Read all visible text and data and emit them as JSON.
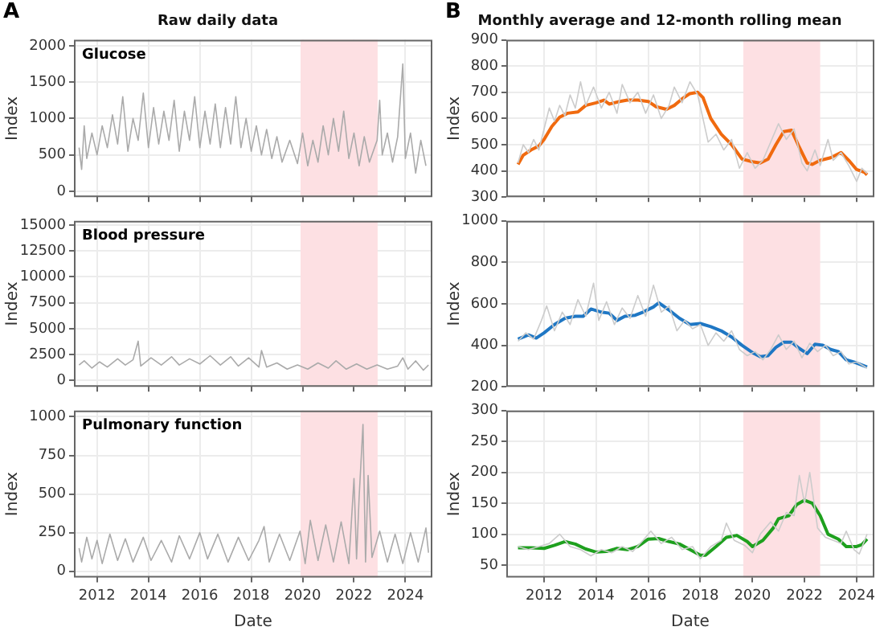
{
  "chart_data": [
    {
      "type": "line",
      "title": "Raw daily data",
      "ylabel": "Index",
      "annotations": [
        "A",
        "Glucose"
      ],
      "xlim": [
        2011.1,
        2025.05
      ],
      "xticks": [
        2012,
        2014,
        2016,
        2018,
        2020,
        2022,
        2024
      ],
      "ylim": [
        -80,
        2080
      ],
      "yticks": [
        0,
        500,
        1000,
        1500,
        2000
      ],
      "grid": true,
      "tick_labels": "y",
      "marker": "none",
      "bands": [
        {
          "axis": "x",
          "from": 2019.92,
          "to": 2022.92,
          "color": "#fde0e3"
        }
      ],
      "series": [
        {
          "color": "#aaaaaa",
          "x": [
            2011.3,
            2011.4,
            2011.5,
            2011.6,
            2011.8,
            2012.0,
            2012.2,
            2012.4,
            2012.6,
            2012.8,
            2013.0,
            2013.2,
            2013.4,
            2013.6,
            2013.8,
            2014.0,
            2014.2,
            2014.4,
            2014.6,
            2014.8,
            2015.0,
            2015.2,
            2015.4,
            2015.6,
            2015.8,
            2016.0,
            2016.2,
            2016.4,
            2016.6,
            2016.8,
            2017.0,
            2017.2,
            2017.4,
            2017.6,
            2017.8,
            2018.0,
            2018.2,
            2018.4,
            2018.6,
            2018.8,
            2019.0,
            2019.2,
            2019.5,
            2019.8,
            2020.0,
            2020.2,
            2020.4,
            2020.6,
            2020.8,
            2021.0,
            2021.2,
            2021.4,
            2021.6,
            2021.8,
            2022.0,
            2022.2,
            2022.4,
            2022.6,
            2022.9,
            2023.0,
            2023.1,
            2023.3,
            2023.5,
            2023.7,
            2023.9,
            2024.0,
            2024.2,
            2024.4,
            2024.6,
            2024.8
          ],
          "values": [
            600,
            300,
            900,
            450,
            800,
            500,
            900,
            600,
            1050,
            650,
            1300,
            550,
            1000,
            700,
            1350,
            600,
            1150,
            650,
            1100,
            700,
            1250,
            550,
            1100,
            700,
            1300,
            600,
            1100,
            650,
            1200,
            600,
            1150,
            650,
            1300,
            600,
            1000,
            550,
            900,
            500,
            850,
            450,
            750,
            400,
            700,
            380,
            800,
            350,
            700,
            400,
            900,
            500,
            1000,
            550,
            1100,
            450,
            800,
            350,
            750,
            400,
            700,
            1250,
            500,
            800,
            400,
            750,
            1750,
            450,
            800,
            250,
            700,
            350
          ]
        }
      ]
    },
    {
      "type": "line",
      "title": "Monthly average and 12-month rolling mean",
      "ylabel": "Index",
      "annotations": [
        "B"
      ],
      "xlim": [
        2010.55,
        2024.68
      ],
      "xticks": [
        2012,
        2014,
        2016,
        2018,
        2020,
        2022,
        2024
      ],
      "ylim": [
        300,
        900
      ],
      "yticks": [
        300,
        400,
        500,
        600,
        700,
        800,
        900
      ],
      "grid": true,
      "tick_labels": "y",
      "marker": "none",
      "bands": [
        {
          "axis": "x",
          "from": 2019.65,
          "to": 2022.6,
          "color": "#fde0e3"
        }
      ],
      "series": [
        {
          "color": "#cccccc",
          "x": [
            2011.0,
            2011.2,
            2011.4,
            2011.6,
            2011.8,
            2012.0,
            2012.2,
            2012.4,
            2012.6,
            2012.8,
            2013.0,
            2013.2,
            2013.4,
            2013.6,
            2013.9,
            2014.2,
            2014.5,
            2014.8,
            2015.0,
            2015.3,
            2015.6,
            2015.9,
            2016.2,
            2016.5,
            2016.8,
            2017.0,
            2017.3,
            2017.6,
            2017.9,
            2018.1,
            2018.3,
            2018.6,
            2018.9,
            2019.2,
            2019.5,
            2019.8,
            2020.1,
            2020.4,
            2020.7,
            2021.0,
            2021.3,
            2021.6,
            2021.9,
            2022.1,
            2022.4,
            2022.6,
            2022.9,
            2023.1,
            2023.4,
            2023.7,
            2024.0,
            2024.2,
            2024.4
          ],
          "values": [
            430,
            500,
            470,
            520,
            480,
            560,
            640,
            590,
            650,
            610,
            690,
            640,
            740,
            650,
            720,
            640,
            700,
            620,
            730,
            660,
            700,
            620,
            690,
            600,
            650,
            720,
            660,
            740,
            690,
            600,
            510,
            540,
            480,
            520,
            410,
            470,
            410,
            440,
            510,
            580,
            520,
            560,
            430,
            400,
            480,
            420,
            520,
            440,
            470,
            420,
            360,
            410,
            390
          ]
        },
        {
          "color": "#f06a0f",
          "x": [
            2011.0,
            2011.2,
            2011.5,
            2011.8,
            2012.0,
            2012.3,
            2012.6,
            2012.9,
            2013.3,
            2013.6,
            2014.0,
            2014.3,
            2014.5,
            2014.9,
            2015.2,
            2015.6,
            2016.0,
            2016.3,
            2016.7,
            2017.0,
            2017.3,
            2017.6,
            2017.9,
            2018.1,
            2018.4,
            2018.8,
            2019.2,
            2019.6,
            2020.0,
            2020.3,
            2020.6,
            2020.9,
            2021.2,
            2021.5,
            2021.8,
            2022.1,
            2022.3,
            2022.6,
            2023.0,
            2023.4,
            2023.7,
            2024.0,
            2024.3,
            2024.4
          ],
          "values": [
            425,
            460,
            480,
            495,
            520,
            570,
            605,
            620,
            625,
            650,
            660,
            670,
            655,
            665,
            670,
            670,
            665,
            645,
            635,
            650,
            675,
            695,
            700,
            680,
            600,
            540,
            500,
            445,
            435,
            430,
            445,
            500,
            550,
            555,
            490,
            430,
            425,
            440,
            450,
            470,
            440,
            405,
            395,
            385
          ]
        }
      ]
    },
    {
      "type": "line",
      "ylabel": "Index",
      "annotations": [
        "Blood pressure"
      ],
      "xlim": [
        2011.1,
        2025.05
      ],
      "xticks": [
        2012,
        2014,
        2016,
        2018,
        2020,
        2022,
        2024
      ],
      "ylim": [
        -600,
        15400
      ],
      "yticks": [
        0,
        2500,
        5000,
        7500,
        10000,
        12500,
        15000
      ],
      "grid": true,
      "tick_labels": "y",
      "marker": "none",
      "bands": [
        {
          "axis": "x",
          "from": 2019.92,
          "to": 2022.92,
          "color": "#fde0e3"
        }
      ],
      "series": [
        {
          "color": "#aaaaaa",
          "x": [
            2011.3,
            2011.5,
            2011.8,
            2012.1,
            2012.4,
            2012.8,
            2013.1,
            2013.4,
            2013.6,
            2013.7,
            2014.1,
            2014.5,
            2014.9,
            2015.2,
            2015.6,
            2016.0,
            2016.4,
            2016.8,
            2017.2,
            2017.5,
            2017.9,
            2018.3,
            2018.4,
            2018.6,
            2019.0,
            2019.4,
            2019.8,
            2020.2,
            2020.6,
            2021.0,
            2021.3,
            2021.7,
            2022.1,
            2022.5,
            2022.9,
            2023.3,
            2023.7,
            2023.9,
            2024.1,
            2024.4,
            2024.7,
            2024.9
          ],
          "values": [
            1500,
            1900,
            1200,
            1800,
            1300,
            2100,
            1500,
            2000,
            3800,
            1400,
            2200,
            1500,
            2300,
            1500,
            2100,
            1600,
            2400,
            1500,
            2300,
            1400,
            2200,
            1300,
            2900,
            1300,
            1700,
            1100,
            1500,
            1100,
            1700,
            1200,
            1900,
            1100,
            1600,
            1100,
            1500,
            1100,
            1400,
            2200,
            1100,
            1900,
            1000,
            1500
          ]
        }
      ]
    },
    {
      "type": "line",
      "ylabel": "Index",
      "xlim": [
        2010.55,
        2024.68
      ],
      "xticks": [
        2012,
        2014,
        2016,
        2018,
        2020,
        2022,
        2024
      ],
      "ylim": [
        200,
        1000
      ],
      "yticks": [
        200,
        400,
        600,
        800,
        1000
      ],
      "grid": true,
      "tick_labels": "y",
      "marker": "none",
      "bands": [
        {
          "axis": "x",
          "from": 2019.65,
          "to": 2022.6,
          "color": "#fde0e3"
        }
      ],
      "series": [
        {
          "color": "#cccccc",
          "x": [
            2011.0,
            2011.3,
            2011.6,
            2011.9,
            2012.1,
            2012.4,
            2012.7,
            2013.0,
            2013.3,
            2013.6,
            2013.9,
            2014.1,
            2014.4,
            2014.7,
            2015.0,
            2015.3,
            2015.6,
            2015.9,
            2016.2,
            2016.5,
            2016.8,
            2017.1,
            2017.4,
            2017.7,
            2018.0,
            2018.3,
            2018.6,
            2018.9,
            2019.2,
            2019.5,
            2019.8,
            2020.1,
            2020.4,
            2020.7,
            2021.0,
            2021.3,
            2021.6,
            2021.9,
            2022.2,
            2022.5,
            2022.8,
            2023.1,
            2023.4,
            2023.7,
            2024.0,
            2024.4
          ],
          "values": [
            420,
            460,
            430,
            520,
            590,
            470,
            560,
            500,
            620,
            540,
            700,
            520,
            610,
            500,
            580,
            530,
            640,
            540,
            690,
            560,
            590,
            470,
            520,
            480,
            500,
            400,
            460,
            420,
            470,
            380,
            350,
            370,
            330,
            380,
            450,
            380,
            420,
            340,
            410,
            370,
            400,
            350,
            370,
            310,
            320,
            290
          ]
        },
        {
          "color": "#1f77c4",
          "x": [
            2011.0,
            2011.4,
            2011.7,
            2012.0,
            2012.4,
            2012.8,
            2013.2,
            2013.5,
            2013.8,
            2014.2,
            2014.5,
            2014.8,
            2015.1,
            2015.5,
            2015.8,
            2016.2,
            2016.4,
            2016.8,
            2017.2,
            2017.6,
            2018.0,
            2018.4,
            2018.8,
            2019.2,
            2019.6,
            2020.0,
            2020.3,
            2020.6,
            2020.9,
            2021.2,
            2021.5,
            2021.8,
            2022.1,
            2022.4,
            2022.7,
            2023.0,
            2023.3,
            2023.6,
            2024.0,
            2024.4
          ],
          "values": [
            430,
            450,
            435,
            460,
            500,
            530,
            540,
            540,
            575,
            560,
            555,
            520,
            540,
            545,
            560,
            585,
            605,
            570,
            530,
            500,
            505,
            490,
            470,
            440,
            400,
            365,
            345,
            350,
            390,
            415,
            415,
            385,
            360,
            405,
            400,
            380,
            370,
            330,
            315,
            295
          ]
        }
      ]
    },
    {
      "type": "line",
      "xlabel": "Date",
      "ylabel": "Index",
      "annotations": [
        "Pulmonary function"
      ],
      "xlim": [
        2011.1,
        2025.05
      ],
      "xticks": [
        2012,
        2014,
        2016,
        2018,
        2020,
        2022,
        2024
      ],
      "ylim": [
        -40,
        1040
      ],
      "yticks": [
        0,
        250,
        500,
        750,
        1000
      ],
      "grid": true,
      "marker": "none",
      "bands": [
        {
          "axis": "x",
          "from": 2019.92,
          "to": 2022.92,
          "color": "#fde0e3"
        }
      ],
      "series": [
        {
          "color": "#aaaaaa",
          "x": [
            2011.3,
            2011.4,
            2011.6,
            2011.8,
            2012.0,
            2012.2,
            2012.5,
            2012.8,
            2013.1,
            2013.4,
            2013.8,
            2014.1,
            2014.5,
            2014.9,
            2015.2,
            2015.6,
            2016.0,
            2016.3,
            2016.7,
            2017.1,
            2017.5,
            2017.9,
            2018.3,
            2018.5,
            2018.7,
            2019.1,
            2019.5,
            2019.9,
            2020.1,
            2020.3,
            2020.6,
            2020.9,
            2021.2,
            2021.5,
            2021.8,
            2022.0,
            2022.1,
            2022.2,
            2022.35,
            2022.45,
            2022.55,
            2022.7,
            2023.0,
            2023.3,
            2023.6,
            2023.9,
            2024.2,
            2024.5,
            2024.8,
            2024.9
          ],
          "values": [
            150,
            60,
            220,
            80,
            200,
            50,
            240,
            70,
            210,
            60,
            220,
            70,
            200,
            60,
            230,
            80,
            250,
            80,
            240,
            60,
            220,
            70,
            200,
            290,
            60,
            240,
            70,
            260,
            50,
            330,
            70,
            300,
            60,
            320,
            50,
            600,
            80,
            480,
            950,
            60,
            620,
            90,
            260,
            60,
            240,
            50,
            250,
            60,
            280,
            120
          ]
        }
      ]
    },
    {
      "type": "line",
      "xlabel": "Date",
      "ylabel": "Index",
      "xlim": [
        2010.55,
        2024.68
      ],
      "xticks": [
        2012,
        2014,
        2016,
        2018,
        2020,
        2022,
        2024
      ],
      "ylim": [
        30,
        300
      ],
      "yticks": [
        50,
        100,
        150,
        200,
        250,
        300
      ],
      "grid": true,
      "marker": "none",
      "bands": [
        {
          "axis": "x",
          "from": 2019.65,
          "to": 2022.6,
          "color": "#fde0e3"
        }
      ],
      "series": [
        {
          "color": "#cccccc",
          "x": [
            2011.0,
            2011.4,
            2011.8,
            2012.2,
            2012.6,
            2013.0,
            2013.4,
            2013.8,
            2014.2,
            2014.6,
            2015.0,
            2015.4,
            2015.8,
            2016.1,
            2016.5,
            2016.9,
            2017.3,
            2017.7,
            2018.0,
            2018.4,
            2018.8,
            2019.0,
            2019.3,
            2019.7,
            2020.0,
            2020.3,
            2020.7,
            2021.0,
            2021.3,
            2021.6,
            2021.8,
            2022.0,
            2022.2,
            2022.5,
            2022.8,
            2023.1,
            2023.4,
            2023.6,
            2023.9,
            2024.1,
            2024.4
          ],
          "values": [
            80,
            75,
            80,
            85,
            100,
            80,
            75,
            65,
            75,
            70,
            80,
            72,
            90,
            105,
            85,
            95,
            75,
            80,
            60,
            80,
            90,
            118,
            90,
            82,
            70,
            100,
            120,
            105,
            135,
            130,
            195,
            150,
            200,
            110,
            95,
            90,
            85,
            105,
            75,
            68,
            100
          ]
        },
        {
          "color": "#1ea01e",
          "x": [
            2011.0,
            2011.5,
            2012.0,
            2012.4,
            2012.8,
            2013.2,
            2013.6,
            2014.0,
            2014.4,
            2014.8,
            2015.2,
            2015.6,
            2016.0,
            2016.4,
            2016.8,
            2017.2,
            2017.6,
            2018.0,
            2018.2,
            2018.6,
            2019.0,
            2019.4,
            2019.8,
            2020.0,
            2020.4,
            2020.8,
            2021.0,
            2021.4,
            2021.7,
            2022.0,
            2022.3,
            2022.6,
            2022.9,
            2023.3,
            2023.6,
            2024.0,
            2024.2,
            2024.4
          ],
          "values": [
            78,
            78,
            77,
            82,
            88,
            84,
            76,
            71,
            72,
            77,
            75,
            80,
            92,
            93,
            88,
            84,
            75,
            66,
            66,
            80,
            95,
            98,
            88,
            80,
            90,
            110,
            125,
            130,
            148,
            155,
            150,
            130,
            100,
            92,
            80,
            80,
            83,
            92
          ]
        }
      ]
    }
  ]
}
